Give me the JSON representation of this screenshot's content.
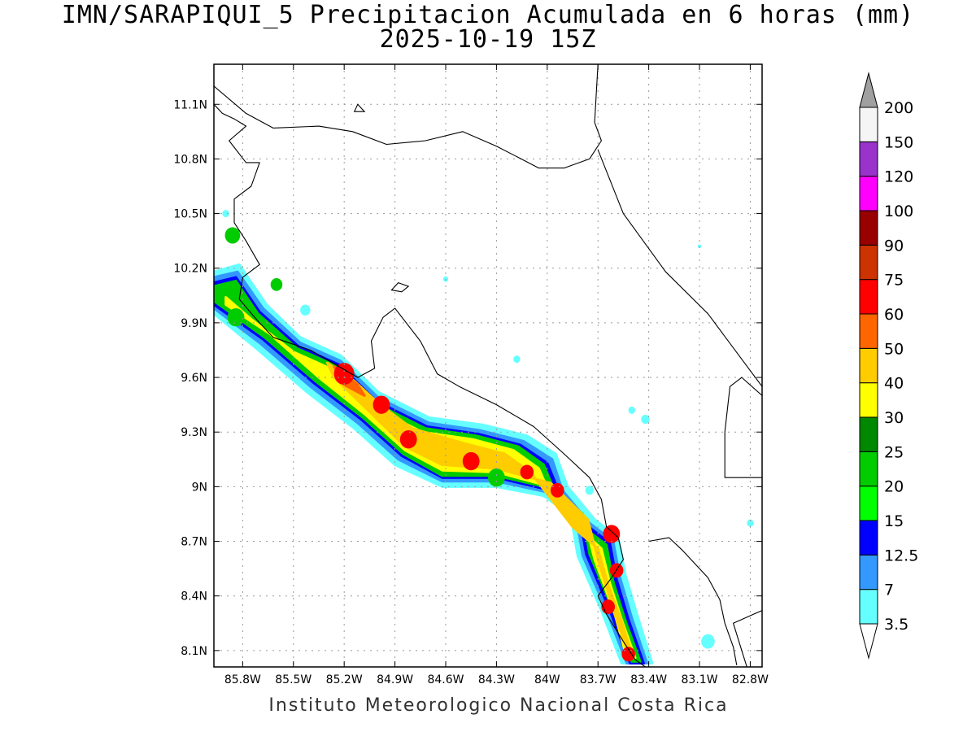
{
  "title": {
    "line1": "IMN/SARAPIQUI_5 Precipitacion Acumulada en 6 horas (mm)",
    "line2": "2025-10-19 15Z"
  },
  "credit": "Instituto Meteorologico Nacional Costa Rica",
  "axes": {
    "x_ticks": [
      "85.8W",
      "85.5W",
      "85.2W",
      "84.9W",
      "84.6W",
      "84.3W",
      "84W",
      "83.7W",
      "83.4W",
      "83.1W",
      "82.8W"
    ],
    "y_ticks": [
      "11.1N",
      "10.8N",
      "10.5N",
      "10.2N",
      "9.9N",
      "9.6N",
      "9.3N",
      "9N",
      "8.7N",
      "8.4N",
      "8.1N"
    ],
    "lon_range": [
      -85.97,
      -82.73
    ],
    "lat_range": [
      8.01,
      11.32
    ],
    "grid": "dotted"
  },
  "colorbar": {
    "levels": [
      "3.5",
      "7",
      "12.5",
      "15",
      "20",
      "25",
      "30",
      "40",
      "50",
      "60",
      "75",
      "90",
      "100",
      "120",
      "150",
      "200"
    ],
    "colors": [
      "#66ffff",
      "#3399ff",
      "#0000ff",
      "#00ff00",
      "#00cc00",
      "#008800",
      "#ffff00",
      "#ffcc00",
      "#ff6600",
      "#ff0000",
      "#cc3300",
      "#990000",
      "#ff00ff",
      "#9933cc",
      "#f5f5f5"
    ],
    "under_color": "#ffffff",
    "over_color": "#a0a0a0"
  },
  "precip_bands": [
    {
      "fill": "#66ffff",
      "points": [
        [
          -85.97,
          10.18
        ],
        [
          -85.82,
          10.22
        ],
        [
          -85.66,
          10.0
        ],
        [
          -85.46,
          9.82
        ],
        [
          -85.22,
          9.72
        ],
        [
          -85.0,
          9.52
        ],
        [
          -84.7,
          9.38
        ],
        [
          -84.38,
          9.34
        ],
        [
          -84.12,
          9.28
        ],
        [
          -83.95,
          9.18
        ],
        [
          -83.88,
          9.0
        ],
        [
          -83.72,
          8.82
        ],
        [
          -83.58,
          8.72
        ],
        [
          -83.54,
          8.52
        ],
        [
          -83.47,
          8.3
        ],
        [
          -83.38,
          8.03
        ],
        [
          -83.56,
          8.03
        ],
        [
          -83.68,
          8.32
        ],
        [
          -83.82,
          8.62
        ],
        [
          -83.86,
          8.84
        ],
        [
          -84.02,
          8.95
        ],
        [
          -84.3,
          9.0
        ],
        [
          -84.62,
          9.0
        ],
        [
          -84.9,
          9.12
        ],
        [
          -85.14,
          9.32
        ],
        [
          -85.42,
          9.52
        ],
        [
          -85.72,
          9.76
        ],
        [
          -85.97,
          9.95
        ]
      ]
    },
    {
      "fill": "#3399ff",
      "points": [
        [
          -85.97,
          10.15
        ],
        [
          -85.83,
          10.18
        ],
        [
          -85.68,
          9.98
        ],
        [
          -85.46,
          9.79
        ],
        [
          -85.22,
          9.69
        ],
        [
          -85.0,
          9.49
        ],
        [
          -84.7,
          9.35
        ],
        [
          -84.4,
          9.31
        ],
        [
          -84.14,
          9.25
        ],
        [
          -83.97,
          9.15
        ],
        [
          -83.91,
          8.98
        ],
        [
          -83.75,
          8.8
        ],
        [
          -83.61,
          8.7
        ],
        [
          -83.57,
          8.5
        ],
        [
          -83.5,
          8.28
        ],
        [
          -83.41,
          8.03
        ],
        [
          -83.53,
          8.03
        ],
        [
          -83.65,
          8.32
        ],
        [
          -83.79,
          8.62
        ],
        [
          -83.83,
          8.84
        ],
        [
          -84.0,
          8.97
        ],
        [
          -84.3,
          9.03
        ],
        [
          -84.62,
          9.03
        ],
        [
          -84.88,
          9.15
        ],
        [
          -85.12,
          9.35
        ],
        [
          -85.4,
          9.55
        ],
        [
          -85.7,
          9.79
        ],
        [
          -85.97,
          9.98
        ]
      ]
    },
    {
      "fill": "#0000ff",
      "points": [
        [
          -85.97,
          10.12
        ],
        [
          -85.84,
          10.15
        ],
        [
          -85.7,
          9.96
        ],
        [
          -85.47,
          9.77
        ],
        [
          -85.23,
          9.67
        ],
        [
          -85.01,
          9.47
        ],
        [
          -84.71,
          9.33
        ],
        [
          -84.41,
          9.29
        ],
        [
          -84.16,
          9.23
        ],
        [
          -84.0,
          9.13
        ],
        [
          -83.93,
          8.97
        ],
        [
          -83.77,
          8.79
        ],
        [
          -83.63,
          8.69
        ],
        [
          -83.59,
          8.49
        ],
        [
          -83.52,
          8.27
        ],
        [
          -83.43,
          8.03
        ],
        [
          -83.51,
          8.03
        ],
        [
          -83.63,
          8.32
        ],
        [
          -83.77,
          8.63
        ],
        [
          -83.81,
          8.85
        ],
        [
          -83.98,
          8.98
        ],
        [
          -84.3,
          9.05
        ],
        [
          -84.62,
          9.05
        ],
        [
          -84.86,
          9.17
        ],
        [
          -85.1,
          9.37
        ],
        [
          -85.38,
          9.57
        ],
        [
          -85.68,
          9.81
        ],
        [
          -85.97,
          10.0
        ]
      ]
    },
    {
      "fill": "#00cc00",
      "points": [
        [
          -85.97,
          10.1
        ],
        [
          -85.84,
          10.13
        ],
        [
          -85.71,
          9.95
        ],
        [
          -85.48,
          9.76
        ],
        [
          -85.24,
          9.66
        ],
        [
          -85.02,
          9.46
        ],
        [
          -84.72,
          9.32
        ],
        [
          -84.42,
          9.28
        ],
        [
          -84.17,
          9.22
        ],
        [
          -84.02,
          9.12
        ],
        [
          -83.95,
          8.96
        ],
        [
          -83.79,
          8.78
        ],
        [
          -83.65,
          8.68
        ],
        [
          -83.61,
          8.48
        ],
        [
          -83.54,
          8.27
        ],
        [
          -83.45,
          8.04
        ],
        [
          -83.5,
          8.04
        ],
        [
          -83.61,
          8.32
        ],
        [
          -83.75,
          8.63
        ],
        [
          -83.79,
          8.85
        ],
        [
          -83.97,
          8.99
        ],
        [
          -84.3,
          9.06
        ],
        [
          -84.62,
          9.06
        ],
        [
          -84.85,
          9.18
        ],
        [
          -85.09,
          9.38
        ],
        [
          -85.37,
          9.58
        ],
        [
          -85.67,
          9.82
        ],
        [
          -85.97,
          10.02
        ]
      ]
    },
    {
      "fill": "#ffff00",
      "points": [
        [
          -85.9,
          10.04
        ],
        [
          -85.75,
          9.92
        ],
        [
          -85.5,
          9.74
        ],
        [
          -85.26,
          9.64
        ],
        [
          -85.04,
          9.44
        ],
        [
          -84.74,
          9.3
        ],
        [
          -84.44,
          9.26
        ],
        [
          -84.2,
          9.2
        ],
        [
          -84.05,
          9.1
        ],
        [
          -83.98,
          8.95
        ],
        [
          -83.82,
          8.78
        ],
        [
          -83.68,
          8.66
        ],
        [
          -83.63,
          8.47
        ],
        [
          -83.56,
          8.27
        ],
        [
          -83.48,
          8.06
        ],
        [
          -83.53,
          8.06
        ],
        [
          -83.6,
          8.3
        ],
        [
          -83.72,
          8.6
        ],
        [
          -83.78,
          8.82
        ],
        [
          -83.98,
          9.0
        ],
        [
          -84.3,
          9.08
        ],
        [
          -84.62,
          9.09
        ],
        [
          -84.84,
          9.2
        ],
        [
          -85.08,
          9.4
        ],
        [
          -85.35,
          9.6
        ],
        [
          -85.64,
          9.84
        ],
        [
          -85.9,
          10.0
        ]
      ]
    },
    {
      "fill": "#ffcc00",
      "points": [
        [
          -85.3,
          9.68
        ],
        [
          -85.14,
          9.58
        ],
        [
          -85.0,
          9.46
        ],
        [
          -84.8,
          9.32
        ],
        [
          -84.5,
          9.24
        ],
        [
          -84.25,
          9.18
        ],
        [
          -84.1,
          9.08
        ],
        [
          -84.0,
          8.96
        ],
        [
          -83.85,
          8.78
        ],
        [
          -83.7,
          8.66
        ],
        [
          -83.64,
          8.46
        ],
        [
          -83.56,
          8.26
        ],
        [
          -83.5,
          8.08
        ],
        [
          -83.52,
          8.08
        ],
        [
          -83.6,
          8.3
        ],
        [
          -83.7,
          8.6
        ],
        [
          -83.76,
          8.82
        ],
        [
          -83.98,
          9.02
        ],
        [
          -84.3,
          9.1
        ],
        [
          -84.62,
          9.12
        ],
        [
          -84.84,
          9.22
        ],
        [
          -85.06,
          9.42
        ],
        [
          -85.26,
          9.6
        ]
      ]
    },
    {
      "fill": "#ff6600",
      "points": [
        [
          -85.26,
          9.66
        ],
        [
          -85.12,
          9.56
        ],
        [
          -85.08,
          9.5
        ],
        [
          -85.2,
          9.56
        ]
      ]
    }
  ],
  "precip_cells": [
    {
      "lon": -85.2,
      "lat": 9.62,
      "r": 0.06,
      "fill": "#ff0000"
    },
    {
      "lon": -84.98,
      "lat": 9.45,
      "r": 0.05,
      "fill": "#ff0000"
    },
    {
      "lon": -84.82,
      "lat": 9.26,
      "r": 0.05,
      "fill": "#ff0000"
    },
    {
      "lon": -84.45,
      "lat": 9.14,
      "r": 0.05,
      "fill": "#ff0000"
    },
    {
      "lon": -84.12,
      "lat": 9.08,
      "r": 0.04,
      "fill": "#ff0000"
    },
    {
      "lon": -83.94,
      "lat": 8.98,
      "r": 0.04,
      "fill": "#ff0000"
    },
    {
      "lon": -83.62,
      "lat": 8.74,
      "r": 0.05,
      "fill": "#ff0000"
    },
    {
      "lon": -83.59,
      "lat": 8.54,
      "r": 0.04,
      "fill": "#ff0000"
    },
    {
      "lon": -83.64,
      "lat": 8.34,
      "r": 0.04,
      "fill": "#ff0000"
    },
    {
      "lon": -83.52,
      "lat": 8.08,
      "r": 0.04,
      "fill": "#ff0000"
    },
    {
      "lon": -85.84,
      "lat": 9.93,
      "r": 0.05,
      "fill": "#00cc00"
    },
    {
      "lon": -84.3,
      "lat": 9.05,
      "r": 0.05,
      "fill": "#00cc00"
    },
    {
      "lon": -85.86,
      "lat": 10.38,
      "r": 0.045,
      "fill": "#00cc00"
    },
    {
      "lon": -85.6,
      "lat": 10.11,
      "r": 0.035,
      "fill": "#00cc00"
    },
    {
      "lon": -85.9,
      "lat": 10.5,
      "r": 0.02,
      "fill": "#66ffff"
    },
    {
      "lon": -85.43,
      "lat": 9.97,
      "r": 0.03,
      "fill": "#66ffff"
    },
    {
      "lon": -84.6,
      "lat": 10.14,
      "r": 0.015,
      "fill": "#66ffff"
    },
    {
      "lon": -84.18,
      "lat": 9.7,
      "r": 0.02,
      "fill": "#66ffff"
    },
    {
      "lon": -83.5,
      "lat": 9.42,
      "r": 0.02,
      "fill": "#66ffff"
    },
    {
      "lon": -83.42,
      "lat": 9.37,
      "r": 0.025,
      "fill": "#66ffff"
    },
    {
      "lon": -83.75,
      "lat": 8.98,
      "r": 0.025,
      "fill": "#66ffff"
    },
    {
      "lon": -83.05,
      "lat": 8.15,
      "r": 0.04,
      "fill": "#66ffff"
    },
    {
      "lon": -82.8,
      "lat": 8.8,
      "r": 0.02,
      "fill": "#66ffff"
    },
    {
      "lon": -83.1,
      "lat": 10.32,
      "r": 0.01,
      "fill": "#66ffff"
    }
  ],
  "coastlines": [
    [
      [
        -85.97,
        11.2
      ],
      [
        -85.78,
        11.05
      ],
      [
        -85.62,
        10.97
      ],
      [
        -85.35,
        10.98
      ],
      [
        -85.15,
        10.95
      ],
      [
        -84.95,
        10.88
      ],
      [
        -84.72,
        10.9
      ],
      [
        -84.5,
        10.95
      ],
      [
        -84.3,
        10.87
      ],
      [
        -84.05,
        10.75
      ],
      [
        -83.9,
        10.75
      ],
      [
        -83.75,
        10.8
      ],
      [
        -83.68,
        10.9
      ],
      [
        -83.72,
        11.0
      ],
      [
        -83.7,
        11.32
      ]
    ],
    [
      [
        -83.7,
        10.85
      ],
      [
        -83.55,
        10.5
      ],
      [
        -83.3,
        10.18
      ],
      [
        -83.05,
        9.95
      ],
      [
        -82.85,
        9.7
      ],
      [
        -82.73,
        9.55
      ]
    ],
    [
      [
        -85.97,
        11.1
      ],
      [
        -85.92,
        11.05
      ],
      [
        -85.85,
        11.02
      ],
      [
        -85.78,
        10.98
      ],
      [
        -85.88,
        10.9
      ],
      [
        -85.78,
        10.78
      ],
      [
        -85.7,
        10.78
      ],
      [
        -85.75,
        10.65
      ],
      [
        -85.85,
        10.58
      ],
      [
        -85.85,
        10.45
      ],
      [
        -85.78,
        10.35
      ],
      [
        -85.7,
        10.22
      ],
      [
        -85.8,
        10.15
      ],
      [
        -85.82,
        10.03
      ],
      [
        -85.72,
        9.92
      ],
      [
        -85.62,
        9.82
      ],
      [
        -85.4,
        9.75
      ],
      [
        -85.25,
        9.67
      ],
      [
        -85.12,
        9.6
      ],
      [
        -85.02,
        9.65
      ],
      [
        -85.04,
        9.8
      ],
      [
        -84.97,
        9.93
      ],
      [
        -84.9,
        9.98
      ],
      [
        -84.75,
        9.8
      ],
      [
        -84.65,
        9.62
      ],
      [
        -84.52,
        9.55
      ],
      [
        -84.3,
        9.45
      ],
      [
        -84.08,
        9.33
      ],
      [
        -83.9,
        9.18
      ],
      [
        -83.75,
        9.05
      ],
      [
        -83.68,
        8.93
      ],
      [
        -83.65,
        8.78
      ],
      [
        -83.58,
        8.72
      ],
      [
        -83.55,
        8.6
      ],
      [
        -83.62,
        8.5
      ],
      [
        -83.7,
        8.4
      ],
      [
        -83.65,
        8.3
      ],
      [
        -83.55,
        8.15
      ],
      [
        -83.48,
        8.05
      ],
      [
        -83.42,
        8.01
      ]
    ],
    [
      [
        -83.4,
        8.7
      ],
      [
        -83.28,
        8.72
      ],
      [
        -83.2,
        8.65
      ],
      [
        -83.05,
        8.5
      ],
      [
        -82.98,
        8.38
      ],
      [
        -82.95,
        8.25
      ],
      [
        -82.9,
        8.12
      ],
      [
        -82.88,
        8.02
      ]
    ],
    [
      [
        -82.82,
        8.01
      ],
      [
        -82.85,
        8.1
      ],
      [
        -82.9,
        8.25
      ],
      [
        -82.78,
        8.3
      ],
      [
        -82.73,
        8.32
      ]
    ],
    [
      [
        -82.73,
        9.5
      ],
      [
        -82.85,
        9.6
      ],
      [
        -82.92,
        9.55
      ],
      [
        -82.95,
        9.3
      ],
      [
        -82.95,
        9.05
      ],
      [
        -82.73,
        9.05
      ]
    ]
  ],
  "islands": [
    [
      [
        -84.88,
        10.12
      ],
      [
        -84.82,
        10.1
      ],
      [
        -84.86,
        10.07
      ],
      [
        -84.92,
        10.08
      ]
    ],
    [
      [
        -85.12,
        11.1
      ],
      [
        -85.08,
        11.06
      ],
      [
        -85.14,
        11.06
      ]
    ]
  ]
}
